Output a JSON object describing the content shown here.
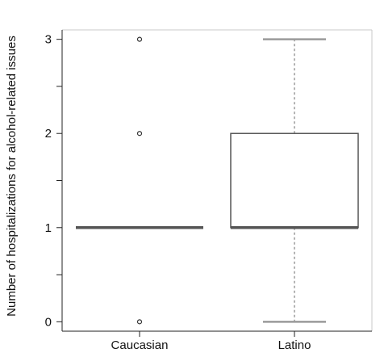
{
  "chart_data": {
    "type": "box",
    "title": "",
    "xlabel": "",
    "ylabel": "Number of hospitalizations for alcohol-related issues",
    "ylim": [
      -0.1,
      3.1
    ],
    "yticks": [
      "0",
      "1",
      "2",
      "3"
    ],
    "categories": [
      "Caucasian",
      "Latino"
    ],
    "boxes": [
      {
        "name": "Caucasian",
        "whisker_low": 1,
        "q1": 1,
        "median": 1,
        "q3": 1,
        "whisker_high": 1,
        "outliers": [
          0,
          2,
          3
        ]
      },
      {
        "name": "Latino",
        "whisker_low": 0,
        "q1": 1,
        "median": 1,
        "q3": 2,
        "whisker_high": 3,
        "outliers": []
      }
    ],
    "grid": false,
    "legend": "none",
    "colors": {
      "box": "#555555",
      "median": "#555555",
      "whisker": "#9a9a9a",
      "axis": "#222222"
    }
  }
}
